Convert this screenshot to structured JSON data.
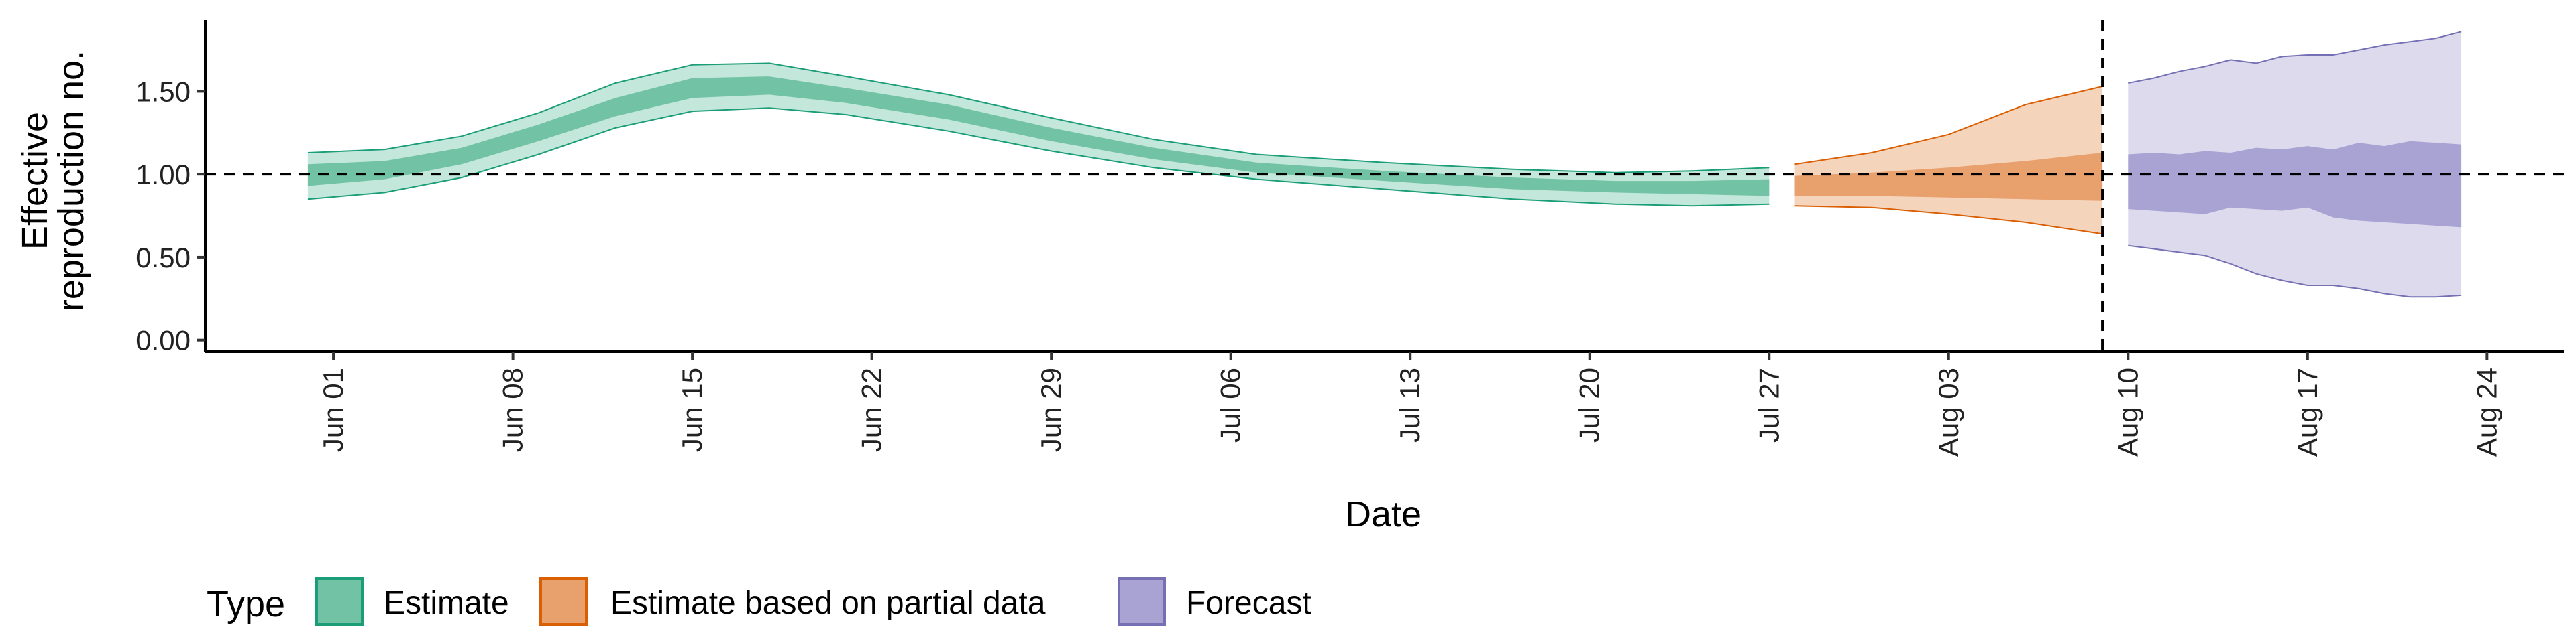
{
  "chart_data": {
    "type": "area",
    "xlabel": "Date",
    "ylabel_lines": [
      "Effective",
      "reproduction no."
    ],
    "x_ticks": [
      "Jun 01",
      "Jun 08",
      "Jun 15",
      "Jun 22",
      "Jun 29",
      "Jul 06",
      "Jul 13",
      "Jul 20",
      "Jul 27",
      "Aug 03",
      "Aug 10",
      "Aug 17",
      "Aug 24"
    ],
    "x_range": [
      "2020-05-27",
      "2020-08-27"
    ],
    "y_ticks": [
      "0.00",
      "0.50",
      "1.00",
      "1.50"
    ],
    "ylim": [
      -0.07,
      1.93
    ],
    "reference_line_y": 1.0,
    "reference_line_date": "2020-08-09",
    "grid": false,
    "legend": {
      "title": "Type",
      "placement": "bottom-left",
      "entries": [
        "Estimate",
        "Estimate based on partial data",
        "Forecast"
      ]
    },
    "series": [
      {
        "name": "Estimate",
        "fill_outer": "#c3e7da",
        "fill_inner": "#72c3a6",
        "stroke": "#1b9e77",
        "points": [
          {
            "date": "2020-05-31",
            "lo90": 0.85,
            "lo50": 0.93,
            "hi50": 1.06,
            "hi90": 1.13
          },
          {
            "date": "2020-06-03",
            "lo90": 0.89,
            "lo50": 0.97,
            "hi50": 1.08,
            "hi90": 1.15
          },
          {
            "date": "2020-06-06",
            "lo90": 0.98,
            "lo50": 1.06,
            "hi50": 1.16,
            "hi90": 1.23
          },
          {
            "date": "2020-06-09",
            "lo90": 1.12,
            "lo50": 1.2,
            "hi50": 1.3,
            "hi90": 1.37
          },
          {
            "date": "2020-06-12",
            "lo90": 1.28,
            "lo50": 1.35,
            "hi50": 1.46,
            "hi90": 1.55
          },
          {
            "date": "2020-06-15",
            "lo90": 1.38,
            "lo50": 1.46,
            "hi50": 1.58,
            "hi90": 1.66
          },
          {
            "date": "2020-06-18",
            "lo90": 1.4,
            "lo50": 1.48,
            "hi50": 1.59,
            "hi90": 1.67
          },
          {
            "date": "2020-06-21",
            "lo90": 1.36,
            "lo50": 1.43,
            "hi50": 1.52,
            "hi90": 1.59
          },
          {
            "date": "2020-06-25",
            "lo90": 1.26,
            "lo50": 1.33,
            "hi50": 1.42,
            "hi90": 1.48
          },
          {
            "date": "2020-06-29",
            "lo90": 1.14,
            "lo50": 1.2,
            "hi50": 1.28,
            "hi90": 1.34
          },
          {
            "date": "2020-07-03",
            "lo90": 1.04,
            "lo50": 1.09,
            "hi50": 1.16,
            "hi90": 1.21
          },
          {
            "date": "2020-07-07",
            "lo90": 0.97,
            "lo50": 1.01,
            "hi50": 1.07,
            "hi90": 1.12
          },
          {
            "date": "2020-07-12",
            "lo90": 0.91,
            "lo50": 0.96,
            "hi50": 1.02,
            "hi90": 1.07
          },
          {
            "date": "2020-07-17",
            "lo90": 0.85,
            "lo50": 0.91,
            "hi50": 0.98,
            "hi90": 1.03
          },
          {
            "date": "2020-07-21",
            "lo90": 0.82,
            "lo50": 0.89,
            "hi50": 0.96,
            "hi90": 1.01
          },
          {
            "date": "2020-07-24",
            "lo90": 0.81,
            "lo50": 0.88,
            "hi50": 0.96,
            "hi90": 1.02
          },
          {
            "date": "2020-07-27",
            "lo90": 0.82,
            "lo50": 0.87,
            "hi50": 0.97,
            "hi90": 1.04
          }
        ]
      },
      {
        "name": "Estimate based on partial data",
        "fill_outer": "#f5d4bc",
        "fill_inner": "#e8a06d",
        "stroke": "#d95f02",
        "points": [
          {
            "date": "2020-07-28",
            "lo90": 0.81,
            "lo50": 0.87,
            "hi50": 0.99,
            "hi90": 1.06
          },
          {
            "date": "2020-07-31",
            "lo90": 0.8,
            "lo50": 0.87,
            "hi50": 1.01,
            "hi90": 1.13
          },
          {
            "date": "2020-08-03",
            "lo90": 0.76,
            "lo50": 0.86,
            "hi50": 1.04,
            "hi90": 1.24
          },
          {
            "date": "2020-08-06",
            "lo90": 0.71,
            "lo50": 0.85,
            "hi50": 1.08,
            "hi90": 1.42
          },
          {
            "date": "2020-08-09",
            "lo90": 0.64,
            "lo50": 0.84,
            "hi50": 1.13,
            "hi90": 1.53
          }
        ]
      },
      {
        "name": "Forecast",
        "fill_outer": "#dcdaec",
        "fill_inner": "#a8a3d3",
        "stroke": "#7570b3",
        "points": [
          {
            "date": "2020-08-10",
            "lo90": 0.57,
            "lo50": 0.79,
            "hi50": 1.12,
            "hi90": 1.55
          },
          {
            "date": "2020-08-11",
            "lo90": 0.55,
            "lo50": 0.78,
            "hi50": 1.13,
            "hi90": 1.58
          },
          {
            "date": "2020-08-12",
            "lo90": 0.53,
            "lo50": 0.77,
            "hi50": 1.12,
            "hi90": 1.62
          },
          {
            "date": "2020-08-13",
            "lo90": 0.51,
            "lo50": 0.76,
            "hi50": 1.14,
            "hi90": 1.65
          },
          {
            "date": "2020-08-14",
            "lo90": 0.46,
            "lo50": 0.8,
            "hi50": 1.13,
            "hi90": 1.69
          },
          {
            "date": "2020-08-15",
            "lo90": 0.4,
            "lo50": 0.79,
            "hi50": 1.16,
            "hi90": 1.67
          },
          {
            "date": "2020-08-16",
            "lo90": 0.36,
            "lo50": 0.78,
            "hi50": 1.15,
            "hi90": 1.71
          },
          {
            "date": "2020-08-17",
            "lo90": 0.33,
            "lo50": 0.8,
            "hi50": 1.17,
            "hi90": 1.72
          },
          {
            "date": "2020-08-18",
            "lo90": 0.33,
            "lo50": 0.74,
            "hi50": 1.15,
            "hi90": 1.72
          },
          {
            "date": "2020-08-19",
            "lo90": 0.31,
            "lo50": 0.72,
            "hi50": 1.19,
            "hi90": 1.75
          },
          {
            "date": "2020-08-20",
            "lo90": 0.28,
            "lo50": 0.71,
            "hi50": 1.17,
            "hi90": 1.78
          },
          {
            "date": "2020-08-21",
            "lo90": 0.26,
            "lo50": 0.7,
            "hi50": 1.2,
            "hi90": 1.8
          },
          {
            "date": "2020-08-22",
            "lo90": 0.26,
            "lo50": 0.69,
            "hi50": 1.19,
            "hi90": 1.82
          },
          {
            "date": "2020-08-23",
            "lo90": 0.27,
            "lo50": 0.68,
            "hi50": 1.18,
            "hi90": 1.86
          }
        ]
      }
    ]
  }
}
